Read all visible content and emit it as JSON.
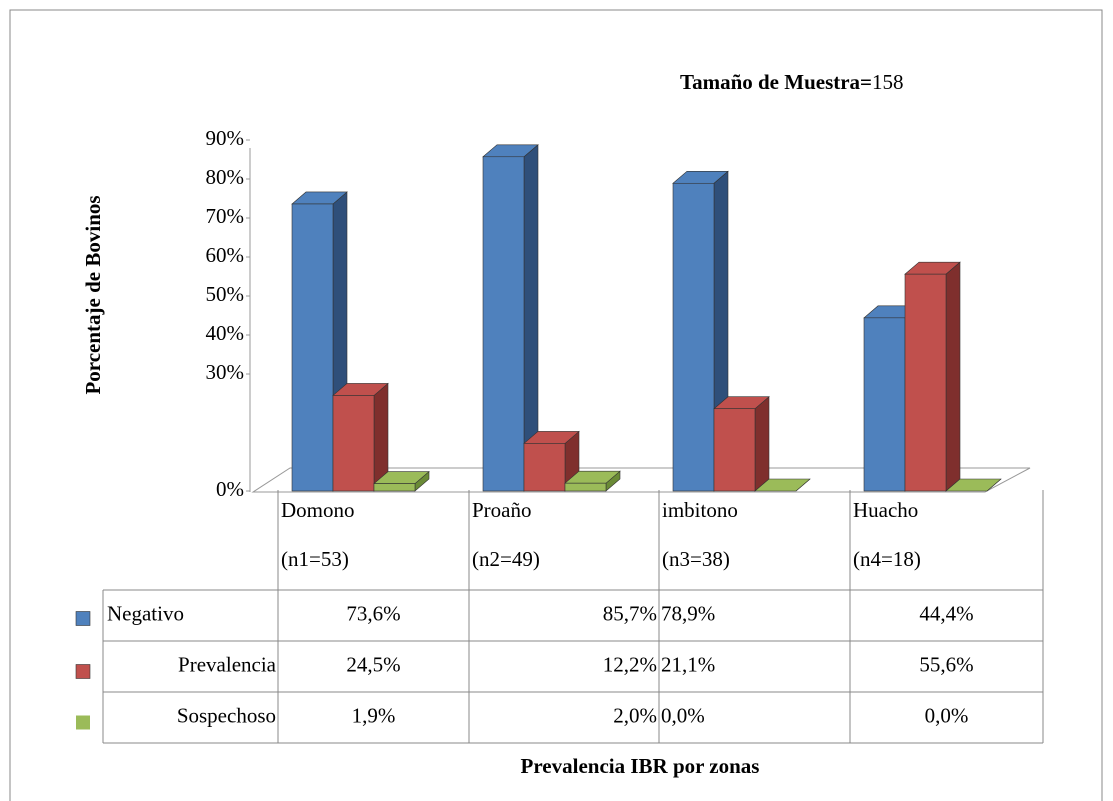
{
  "chart_data": {
    "type": "bar3d",
    "sample_size_label": "Tamaño de Muestra=",
    "sample_size": 158,
    "y_label": "Porcentaje de Bovinos",
    "x_label": "Prevalencia IBR por zonas",
    "categories": [
      [
        "Domono",
        "(n1=53)"
      ],
      [
        "Proaño",
        "(n2=49)"
      ],
      [
        "imbitono",
        "(n3=38)"
      ],
      [
        "Huacho",
        "(n4=18)"
      ]
    ],
    "series": [
      {
        "name": "Negativo",
        "color": "#4f81bd",
        "side": "#2f4f7a",
        "values": [
          73.6,
          85.7,
          78.9,
          44.4
        ],
        "value_labels": [
          "73,6%",
          "85,7%",
          "78,9%",
          "44,4%"
        ]
      },
      {
        "name": "Prevalencia",
        "color": "#c0504d",
        "side": "#7f2f2d",
        "values": [
          24.5,
          12.2,
          21.1,
          55.6
        ],
        "value_labels": [
          "24,5%",
          "12,2%",
          "21,1%",
          "55,6%"
        ]
      },
      {
        "name": "Sospechoso",
        "color": "#9bbb59",
        "side": "#6a8a36",
        "values": [
          1.9,
          2.0,
          0.0,
          0.0
        ],
        "value_labels": [
          "1,9%",
          "2,0%",
          "0,0%",
          "0,0%"
        ]
      }
    ],
    "ylim": [
      0,
      90
    ],
    "yticks": [
      {
        "value": 0,
        "label": "0%"
      },
      {
        "value": 30,
        "label": "30%"
      },
      {
        "value": 40,
        "label": "40%"
      },
      {
        "value": 50,
        "label": "50%"
      },
      {
        "value": 60,
        "label": "60%"
      },
      {
        "value": 70,
        "label": "70%"
      },
      {
        "value": 80,
        "label": "80%"
      },
      {
        "value": 90,
        "label": "90%"
      }
    ]
  }
}
